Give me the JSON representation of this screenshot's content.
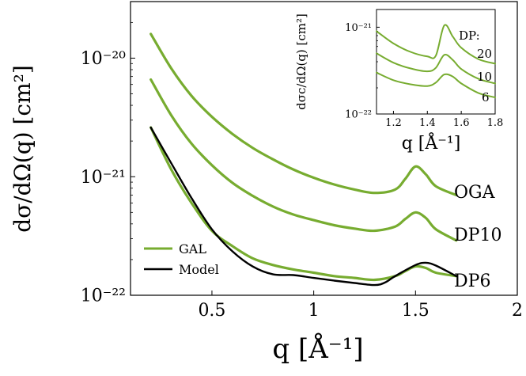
{
  "chart_data": [
    {
      "type": "line",
      "xlabel": "q [Å⁻¹]",
      "ylabel": "dσ/dΩ(q) [cm²]",
      "y_scale": "log",
      "xlim": [
        0.1,
        2.0
      ],
      "ylim": [
        1e-22,
        3e-20
      ],
      "x_ticks": [
        0.5,
        1,
        1.5,
        2
      ],
      "x_tick_labels": [
        "0.5",
        "1",
        "1.5",
        "2"
      ],
      "y_ticks": [
        1e-22,
        1e-21,
        1e-20
      ],
      "y_tick_labels": [
        "10⁻²²",
        "10⁻²¹",
        "10⁻²⁰"
      ],
      "legend": {
        "position": "bottom-left",
        "entries": [
          {
            "label": "GAL",
            "color": "#77ac30"
          },
          {
            "label": "Model",
            "color": "#000000"
          }
        ]
      },
      "series": [
        {
          "label": "OGA",
          "color": "#77ac30",
          "x": [
            0.2,
            0.3,
            0.4,
            0.5,
            0.6,
            0.7,
            0.8,
            0.9,
            1.0,
            1.1,
            1.2,
            1.3,
            1.4,
            1.45,
            1.5,
            1.55,
            1.6,
            1.7
          ],
          "y": [
            1.6e-20,
            8.2e-21,
            4.8e-21,
            3.2e-21,
            2.3e-21,
            1.75e-21,
            1.4e-21,
            1.15e-21,
            9.8e-22,
            8.6e-22,
            7.8e-22,
            7.3e-22,
            7.8e-22,
            9.6e-22,
            1.22e-21,
            1.05e-21,
            8.3e-22,
            7e-22
          ]
        },
        {
          "label": "DP10",
          "color": "#77ac30",
          "x": [
            0.2,
            0.3,
            0.4,
            0.5,
            0.6,
            0.7,
            0.8,
            0.9,
            1.0,
            1.1,
            1.2,
            1.3,
            1.4,
            1.45,
            1.5,
            1.55,
            1.6,
            1.7
          ],
          "y": [
            6.6e-21,
            3.3e-21,
            1.9e-21,
            1.25e-21,
            8.9e-22,
            6.9e-22,
            5.6e-22,
            4.8e-22,
            4.3e-22,
            3.9e-22,
            3.65e-22,
            3.5e-22,
            3.8e-22,
            4.4e-22,
            5e-22,
            4.5e-22,
            3.6e-22,
            2.9e-22
          ]
        },
        {
          "label": "DP6",
          "color": "#77ac30",
          "x": [
            0.2,
            0.3,
            0.4,
            0.5,
            0.6,
            0.7,
            0.8,
            0.9,
            1.0,
            1.1,
            1.2,
            1.3,
            1.4,
            1.45,
            1.5,
            1.55,
            1.6,
            1.7
          ],
          "y": [
            2.6e-21,
            1.15e-21,
            6e-22,
            3.5e-22,
            2.6e-22,
            2.05e-22,
            1.8e-22,
            1.65e-22,
            1.55e-22,
            1.45e-22,
            1.4e-22,
            1.35e-22,
            1.45e-22,
            1.6e-22,
            1.75e-22,
            1.7e-22,
            1.55e-22,
            1.45e-22
          ]
        },
        {
          "label": "Model",
          "color": "#000000",
          "x": [
            0.2,
            0.3,
            0.4,
            0.5,
            0.6,
            0.7,
            0.8,
            0.9,
            1.0,
            1.1,
            1.2,
            1.3,
            1.35,
            1.4,
            1.5,
            1.55,
            1.6,
            1.7
          ],
          "y": [
            2.6e-21,
            1.3e-21,
            6.6e-22,
            3.6e-22,
            2.35e-22,
            1.75e-22,
            1.5e-22,
            1.48e-22,
            1.4e-22,
            1.33e-22,
            1.27e-22,
            1.22e-22,
            1.28e-22,
            1.45e-22,
            1.8e-22,
            1.88e-22,
            1.78e-22,
            1.45e-22
          ]
        }
      ]
    },
    {
      "type": "line",
      "inset": true,
      "title": "DP:",
      "xlabel": "q [Å⁻¹]",
      "ylabel": "dσc/dΩ(q) [cm²]",
      "y_scale": "log",
      "xlim": [
        1.1,
        1.8
      ],
      "ylim": [
        1e-22,
        1.6e-21
      ],
      "x_ticks": [
        1.2,
        1.4,
        1.6,
        1.8
      ],
      "x_tick_labels": [
        "1.2",
        "1.4",
        "1.6",
        "1.8"
      ],
      "y_ticks": [
        1e-22,
        1e-21
      ],
      "y_tick_labels": [
        "10⁻²²",
        "10⁻²¹"
      ],
      "series": [
        {
          "label": "20",
          "color": "#77ac30",
          "x": [
            1.1,
            1.2,
            1.3,
            1.4,
            1.45,
            1.5,
            1.55,
            1.6,
            1.7,
            1.8
          ],
          "y": [
            9e-22,
            6.5e-22,
            5.2e-22,
            4.6e-22,
            4.7e-22,
            1.05e-21,
            7.8e-22,
            5.8e-22,
            4.3e-22,
            3.8e-22
          ]
        },
        {
          "label": "10",
          "color": "#77ac30",
          "x": [
            1.1,
            1.2,
            1.3,
            1.4,
            1.45,
            1.5,
            1.55,
            1.6,
            1.7,
            1.8
          ],
          "y": [
            5e-22,
            3.9e-22,
            3.35e-22,
            3.1e-22,
            3.4e-22,
            4.8e-22,
            4.2e-22,
            3.3e-22,
            2.55e-22,
            2.25e-22
          ]
        },
        {
          "label": "6",
          "color": "#77ac30",
          "x": [
            1.1,
            1.2,
            1.3,
            1.4,
            1.45,
            1.5,
            1.55,
            1.6,
            1.7,
            1.8
          ],
          "y": [
            3e-22,
            2.45e-22,
            2.2e-22,
            2.1e-22,
            2.3e-22,
            2.85e-22,
            2.7e-22,
            2.25e-22,
            1.75e-22,
            1.55e-22
          ]
        }
      ]
    }
  ]
}
